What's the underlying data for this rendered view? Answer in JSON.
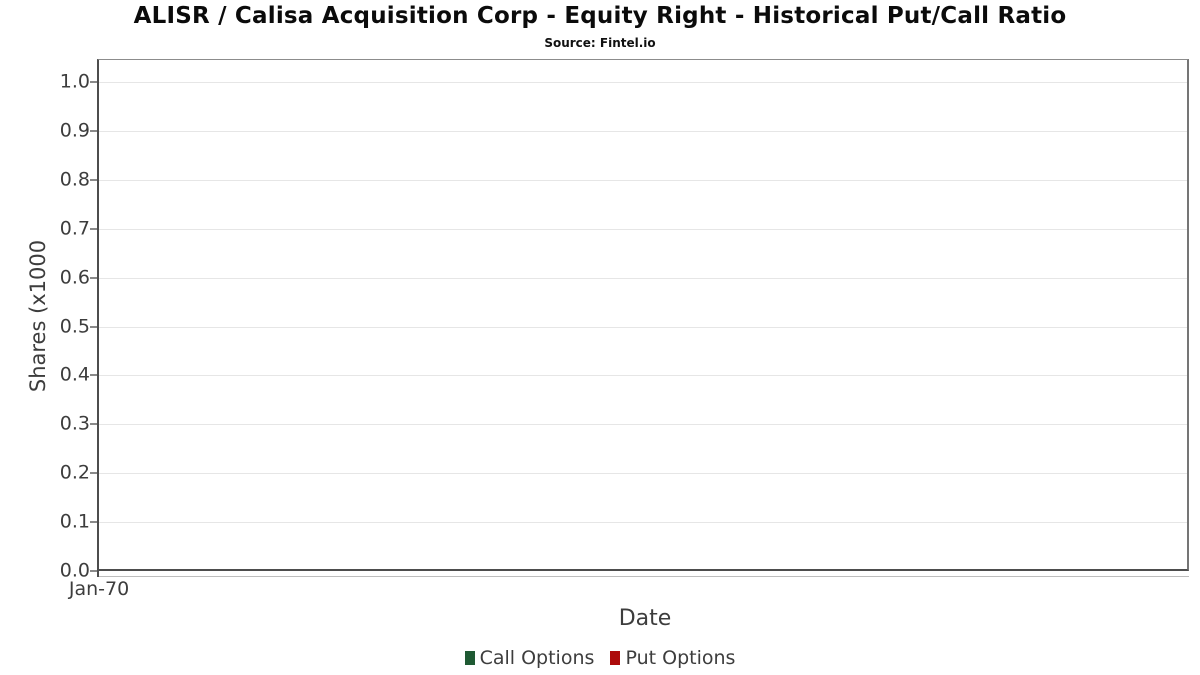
{
  "header": {
    "title": "ALISR / Calisa Acquisition Corp - Equity Right - Historical Put/Call Ratio",
    "subtitle": "Source: Fintel.io"
  },
  "chart_data": {
    "type": "line",
    "title": "ALISR / Calisa Acquisition Corp - Equity Right - Historical Put/Call Ratio",
    "subtitle": "Source: Fintel.io",
    "xlabel": "Date",
    "ylabel": "Shares (x1000",
    "x_tick_labels": [
      "Jan-70"
    ],
    "y_tick_labels": [
      "0.0",
      "0.1",
      "0.2",
      "0.3",
      "0.4",
      "0.5",
      "0.6",
      "0.7",
      "0.8",
      "0.9",
      "1.0"
    ],
    "ylim": [
      0.0,
      1.05
    ],
    "grid": "horizontal-light",
    "legend_position": "bottom-center",
    "series": [
      {
        "name": "Call Options",
        "color": "#1f5a33",
        "x": [],
        "values": []
      },
      {
        "name": "Put Options",
        "color": "#ad0b0b",
        "x": [],
        "values": []
      }
    ]
  },
  "colors": {
    "call_options": "#1f5a33",
    "put_options": "#ad0b0b",
    "gridline": "#e6e6e6",
    "axis_dark": "#4d4d4d",
    "axis_light": "#8c8c8c",
    "text": "#3d3d3d"
  }
}
